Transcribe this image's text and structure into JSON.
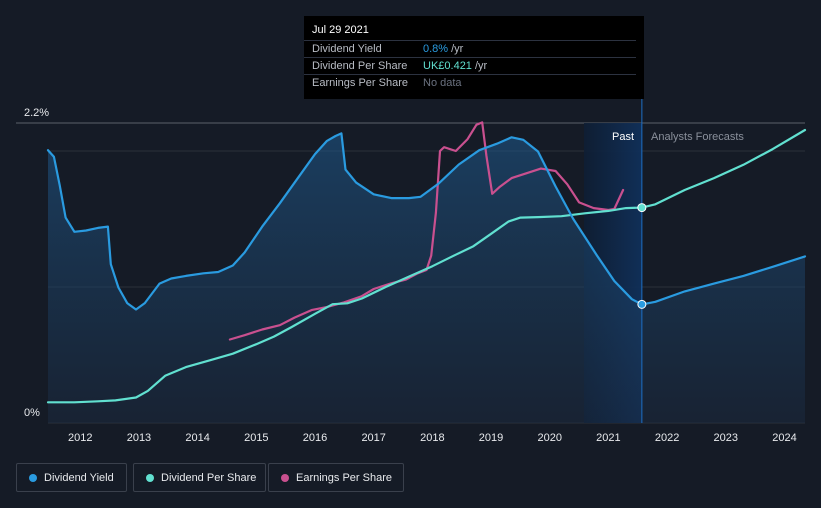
{
  "tooltip": {
    "date": "Jul 29 2021",
    "rows": [
      {
        "label": "Dividend Yield",
        "value": "0.8%",
        "unit": "/yr",
        "color": "#2a9be0"
      },
      {
        "label": "Dividend Per Share",
        "value": "UK£0.421",
        "unit": "/yr",
        "color": "#61e0d0"
      },
      {
        "label": "Earnings Per Share",
        "value": "No data",
        "unit": "",
        "color": "#6b7280"
      }
    ]
  },
  "labels": {
    "past": "Past",
    "forecast": "Analysts Forecasts"
  },
  "legend": [
    {
      "label": "Dividend Yield",
      "color": "#2a9be0"
    },
    {
      "label": "Dividend Per Share",
      "color": "#61e0d0"
    },
    {
      "label": "Earnings Per Share",
      "color": "#c9508f"
    }
  ],
  "colors": {
    "background": "#151b26",
    "past_band": "#0f2a4a"
  },
  "chart_data": {
    "type": "line",
    "y_tick_labels": [
      "2.2%",
      "0%"
    ],
    "y_range_percent": [
      0,
      2.2
    ],
    "x_range": [
      2011.45,
      2024.35
    ],
    "x_ticks": [
      "2012",
      "2013",
      "2014",
      "2015",
      "2016",
      "2017",
      "2018",
      "2019",
      "2020",
      "2021",
      "2022",
      "2023",
      "2024"
    ],
    "past_forecast_divider": 2021.57,
    "hover_x": 2021.57,
    "series": [
      {
        "name": "Dividend Yield",
        "unit": "%",
        "filled": true,
        "points": [
          [
            2011.45,
            1.99
          ],
          [
            2011.55,
            1.94
          ],
          [
            2011.65,
            1.72
          ],
          [
            2011.75,
            1.47
          ],
          [
            2011.9,
            1.36
          ],
          [
            2012.1,
            1.37
          ],
          [
            2012.3,
            1.39
          ],
          [
            2012.47,
            1.4
          ],
          [
            2012.52,
            1.11
          ],
          [
            2012.65,
            0.93
          ],
          [
            2012.8,
            0.81
          ],
          [
            2012.95,
            0.76
          ],
          [
            2013.1,
            0.81
          ],
          [
            2013.35,
            0.96
          ],
          [
            2013.55,
            1.0
          ],
          [
            2013.8,
            1.02
          ],
          [
            2014.1,
            1.04
          ],
          [
            2014.35,
            1.05
          ],
          [
            2014.6,
            1.1
          ],
          [
            2014.8,
            1.2
          ],
          [
            2015.1,
            1.4
          ],
          [
            2015.4,
            1.58
          ],
          [
            2015.7,
            1.77
          ],
          [
            2016.0,
            1.96
          ],
          [
            2016.2,
            2.06
          ],
          [
            2016.35,
            2.1
          ],
          [
            2016.45,
            2.12
          ],
          [
            2016.52,
            1.84
          ],
          [
            2016.7,
            1.74
          ],
          [
            2017.0,
            1.65
          ],
          [
            2017.3,
            1.62
          ],
          [
            2017.6,
            1.62
          ],
          [
            2017.8,
            1.63
          ],
          [
            2018.1,
            1.73
          ],
          [
            2018.45,
            1.88
          ],
          [
            2018.8,
            1.99
          ],
          [
            2019.1,
            2.04
          ],
          [
            2019.35,
            2.09
          ],
          [
            2019.55,
            2.07
          ],
          [
            2019.8,
            1.98
          ],
          [
            2020.1,
            1.71
          ],
          [
            2020.4,
            1.46
          ],
          [
            2020.8,
            1.18
          ],
          [
            2021.1,
            0.98
          ],
          [
            2021.4,
            0.84
          ],
          [
            2021.57,
            0.8
          ],
          [
            2021.8,
            0.82
          ],
          [
            2022.3,
            0.9
          ],
          [
            2022.8,
            0.96
          ],
          [
            2023.3,
            1.02
          ],
          [
            2023.8,
            1.09
          ],
          [
            2024.35,
            1.17
          ]
        ]
      },
      {
        "name": "Dividend Per Share",
        "unit": "UK£",
        "points": [
          [
            2011.45,
            0.012
          ],
          [
            2011.9,
            0.012
          ],
          [
            2012.3,
            0.014
          ],
          [
            2012.6,
            0.016
          ],
          [
            2012.95,
            0.022
          ],
          [
            2013.15,
            0.036
          ],
          [
            2013.45,
            0.068
          ],
          [
            2013.8,
            0.086
          ],
          [
            2014.2,
            0.1
          ],
          [
            2014.6,
            0.114
          ],
          [
            2015.0,
            0.134
          ],
          [
            2015.3,
            0.15
          ],
          [
            2015.6,
            0.17
          ],
          [
            2016.0,
            0.198
          ],
          [
            2016.3,
            0.218
          ],
          [
            2016.55,
            0.22
          ],
          [
            2016.8,
            0.23
          ],
          [
            2017.2,
            0.254
          ],
          [
            2017.6,
            0.276
          ],
          [
            2018.0,
            0.298
          ],
          [
            2018.4,
            0.322
          ],
          [
            2018.7,
            0.34
          ],
          [
            2019.0,
            0.366
          ],
          [
            2019.3,
            0.392
          ],
          [
            2019.5,
            0.4
          ],
          [
            2019.8,
            0.401
          ],
          [
            2020.2,
            0.403
          ],
          [
            2020.6,
            0.409
          ],
          [
            2021.0,
            0.414
          ],
          [
            2021.3,
            0.42
          ],
          [
            2021.57,
            0.421
          ],
          [
            2021.8,
            0.428
          ],
          [
            2022.3,
            0.458
          ],
          [
            2022.8,
            0.483
          ],
          [
            2023.3,
            0.511
          ],
          [
            2023.8,
            0.544
          ],
          [
            2024.35,
            0.584
          ]
        ]
      },
      {
        "name": "Earnings Per Share",
        "unit": "UK£",
        "points": [
          [
            2014.55,
            0.144
          ],
          [
            2014.8,
            0.153
          ],
          [
            2015.1,
            0.165
          ],
          [
            2015.4,
            0.174
          ],
          [
            2015.65,
            0.19
          ],
          [
            2015.95,
            0.206
          ],
          [
            2016.2,
            0.212
          ],
          [
            2016.5,
            0.222
          ],
          [
            2016.8,
            0.235
          ],
          [
            2017.0,
            0.25
          ],
          [
            2017.3,
            0.262
          ],
          [
            2017.55,
            0.27
          ],
          [
            2017.75,
            0.283
          ],
          [
            2017.9,
            0.29
          ],
          [
            2017.98,
            0.32
          ],
          [
            2018.06,
            0.41
          ],
          [
            2018.13,
            0.54
          ],
          [
            2018.2,
            0.548
          ],
          [
            2018.4,
            0.54
          ],
          [
            2018.6,
            0.565
          ],
          [
            2018.75,
            0.595
          ],
          [
            2018.85,
            0.6
          ],
          [
            2018.92,
            0.53
          ],
          [
            2019.02,
            0.45
          ],
          [
            2019.15,
            0.465
          ],
          [
            2019.35,
            0.483
          ],
          [
            2019.6,
            0.493
          ],
          [
            2019.85,
            0.503
          ],
          [
            2020.1,
            0.498
          ],
          [
            2020.3,
            0.47
          ],
          [
            2020.5,
            0.432
          ],
          [
            2020.75,
            0.42
          ],
          [
            2021.0,
            0.416
          ],
          [
            2021.1,
            0.418
          ],
          [
            2021.25,
            0.458
          ]
        ]
      }
    ]
  }
}
